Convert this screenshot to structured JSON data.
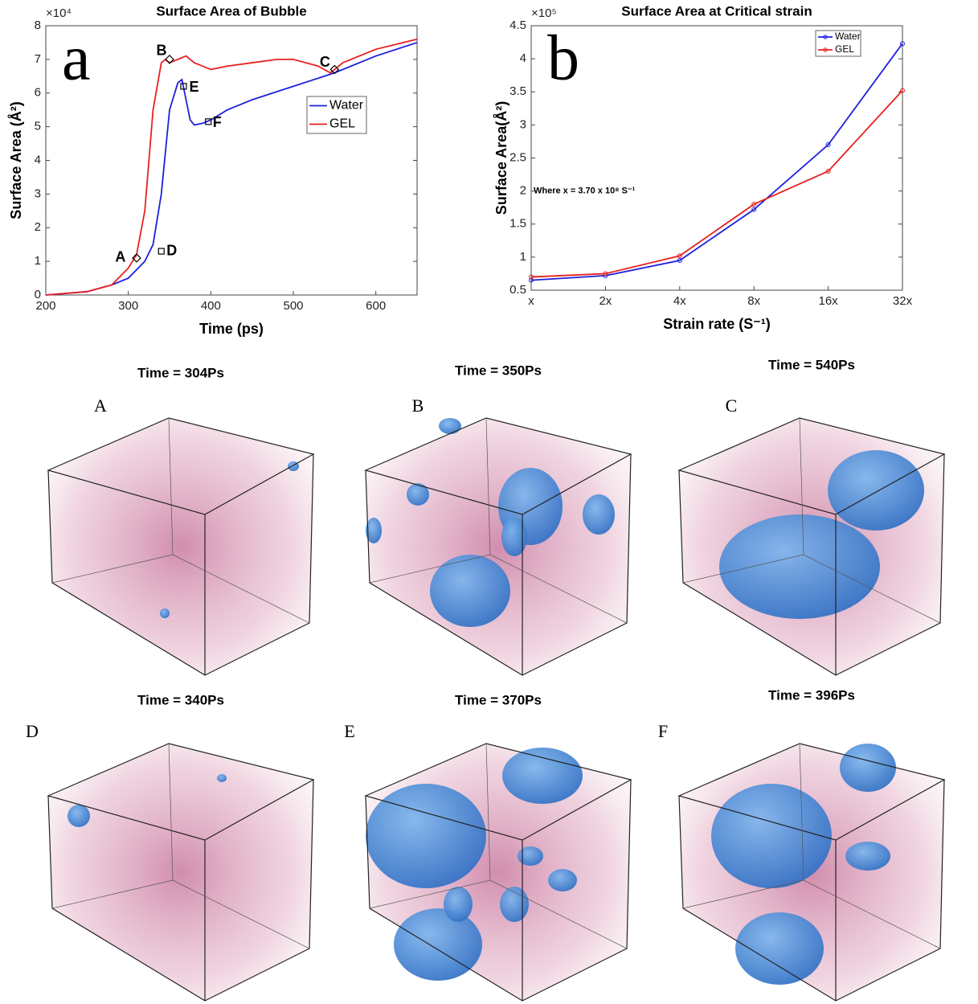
{
  "chart_data": [
    {
      "type": "line",
      "panel_label": "a",
      "title": "Surface Area of Bubble",
      "xlabel": "Time (ps)",
      "ylabel": "Surface Area (Å²)",
      "scale": "×10⁴",
      "xlim": [
        200,
        650
      ],
      "xticks": [
        200,
        300,
        400,
        500,
        600
      ],
      "ylim": [
        0,
        8
      ],
      "yticks": [
        0,
        1,
        2,
        3,
        4,
        5,
        6,
        7,
        8
      ],
      "series": [
        {
          "name": "Water",
          "color": "#1f1fdd",
          "marker": "square",
          "x": [
            200,
            250,
            280,
            300,
            320,
            330,
            340,
            350,
            360,
            365,
            370,
            375,
            380,
            390,
            400,
            420,
            450,
            500,
            550,
            600,
            650
          ],
          "values": [
            0,
            0.1,
            0.3,
            0.5,
            1.0,
            1.5,
            3,
            5.5,
            6.3,
            6.4,
            5.8,
            5.2,
            5.05,
            5.1,
            5.2,
            5.5,
            5.8,
            6.2,
            6.6,
            7.1,
            7.5
          ]
        },
        {
          "name": "GEL",
          "color": "#e82020",
          "marker": "diamond",
          "x": [
            200,
            250,
            280,
            300,
            310,
            320,
            330,
            340,
            345,
            350,
            360,
            370,
            380,
            400,
            420,
            450,
            480,
            500,
            530,
            545,
            560,
            600,
            650
          ],
          "values": [
            0,
            0.1,
            0.3,
            0.8,
            1.2,
            2.5,
            5.5,
            6.9,
            7.0,
            6.9,
            7.0,
            7.1,
            6.9,
            6.7,
            6.8,
            6.9,
            7.0,
            7.0,
            6.8,
            6.6,
            6.9,
            7.3,
            7.6
          ]
        }
      ],
      "markers": [
        {
          "label": "A",
          "series": 1,
          "x": 310,
          "y": 1.1
        },
        {
          "label": "B",
          "series": 1,
          "x": 350,
          "y": 7.0
        },
        {
          "label": "C",
          "series": 1,
          "x": 550,
          "y": 6.7
        },
        {
          "label": "D",
          "series": 0,
          "x": 340,
          "y": 1.3
        },
        {
          "label": "E",
          "series": 0,
          "x": 367,
          "y": 6.2
        },
        {
          "label": "F",
          "series": 0,
          "x": 397,
          "y": 5.15
        }
      ]
    },
    {
      "type": "line",
      "panel_label": "b",
      "title": "Surface Area at Critical strain",
      "xlabel": "Strain rate (S⁻¹)",
      "ylabel": "Surface Area(Å²)",
      "scale": "×10⁵",
      "annotation": "Where x =  3.70 x 10⁸ S⁻¹",
      "categories": [
        "x",
        "2x",
        "4x",
        "8x",
        "16x",
        "32x"
      ],
      "ylim": [
        0.5,
        4.5
      ],
      "yticks": [
        0.5,
        1,
        1.5,
        2,
        2.5,
        3,
        3.5,
        4,
        4.5
      ],
      "series": [
        {
          "name": "Water",
          "color": "#1f1fdd",
          "values": [
            0.65,
            0.72,
            0.95,
            1.72,
            2.7,
            4.23
          ]
        },
        {
          "name": "GEL",
          "color": "#e82020",
          "values": [
            0.7,
            0.75,
            1.02,
            1.8,
            2.3,
            3.52
          ]
        }
      ]
    }
  ],
  "snapshots": [
    {
      "time": "Time = 304Ps",
      "label": "A"
    },
    {
      "time": "Time = 350Ps",
      "label": "B"
    },
    {
      "time": "Time = 540Ps",
      "label": "C"
    },
    {
      "time": "Time = 340Ps",
      "label": "D"
    },
    {
      "time": "Time = 370Ps",
      "label": "E"
    },
    {
      "time": "Time = 396Ps",
      "label": "F"
    }
  ]
}
